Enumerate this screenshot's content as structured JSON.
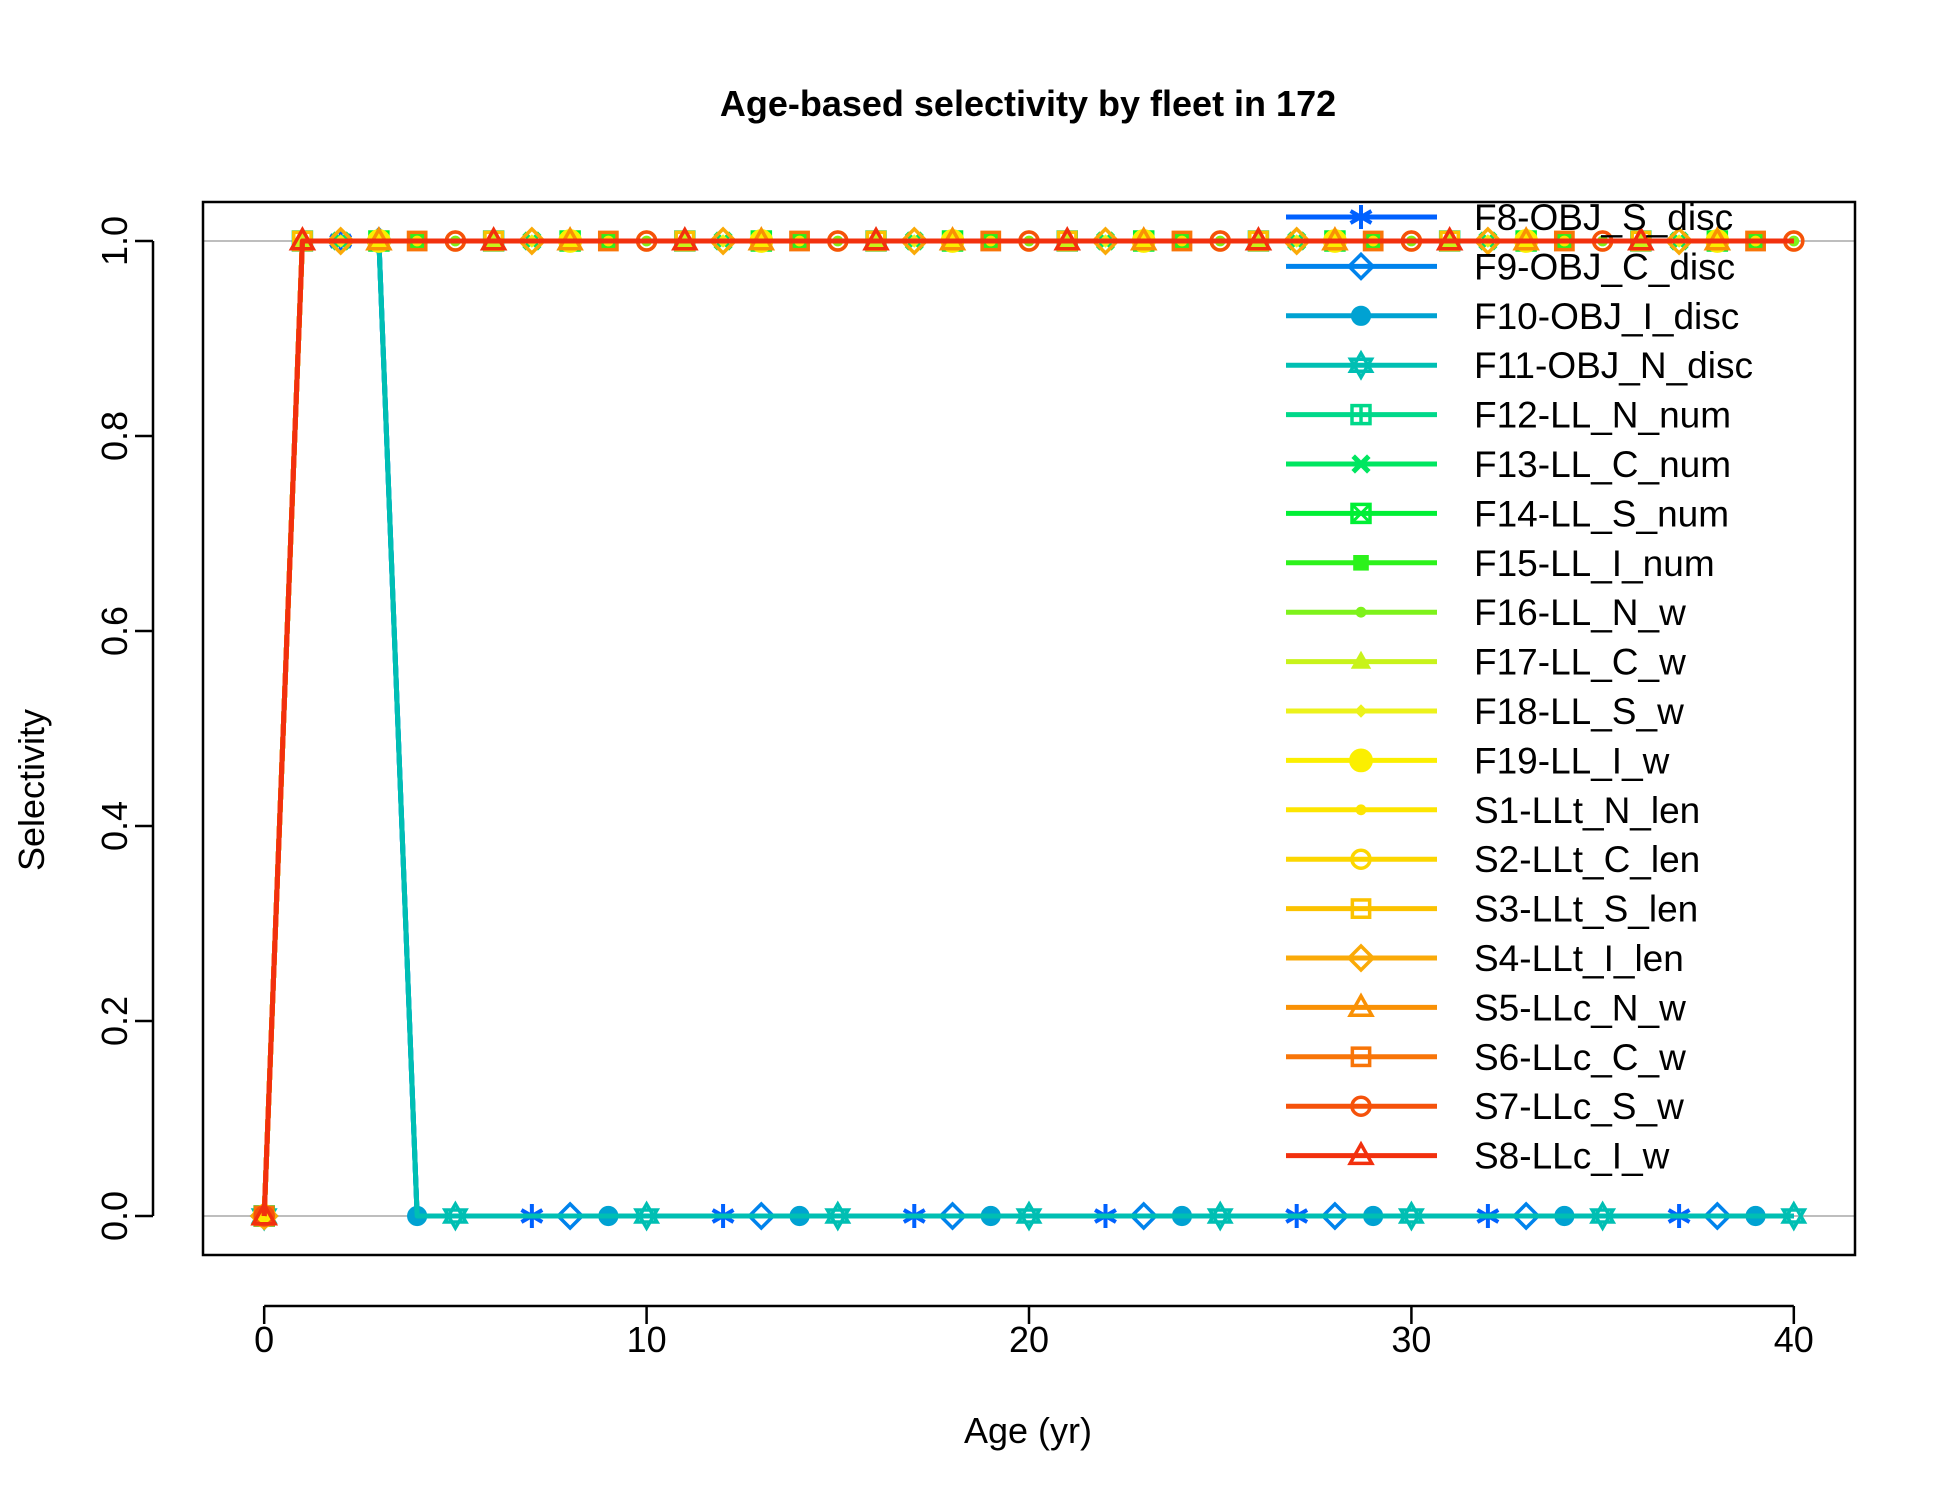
{
  "chart_data": {
    "type": "line",
    "title": "Age-based selectivity by fleet in 172",
    "xlabel": "Age (yr)",
    "ylabel": "Selectivity",
    "xlim": [
      -1.6,
      41.6
    ],
    "ylim": [
      -0.04,
      1.04
    ],
    "x_ticks": [
      "0",
      "10",
      "20",
      "30",
      "40"
    ],
    "y_ticks": [
      "0.0",
      "0.2",
      "0.4",
      "0.6",
      "0.8",
      "1.0"
    ],
    "reference_lines": [
      0,
      1
    ],
    "legend_position": "top-right",
    "groups": [
      {
        "x_switch": 4,
        "series": [
          "F8-OBJ_S_disc",
          "F9-OBJ_C_disc",
          "F10-OBJ_I_disc",
          "F11-OBJ_N_disc"
        ],
        "note": "selectivity 0 at age 0, 1 at ages 1-3, 0 at ages 4-40"
      },
      {
        "x_switch": 1,
        "series": [
          "F12-LL_N_num",
          "F13-LL_C_num",
          "F14-LL_S_num",
          "F15-LL_I_num",
          "F16-LL_N_w",
          "F17-LL_C_w",
          "F18-LL_S_w",
          "F19-LL_I_w",
          "S1-LLt_N_len",
          "S2-LLt_C_len",
          "S3-LLt_S_len",
          "S4-LLt_I_len",
          "S5-LLc_N_w",
          "S6-LLc_C_w",
          "S7-LLc_S_w",
          "S8-LLc_I_w"
        ],
        "note": "selectivity 0 at age 0, 1 at ages 1-40"
      }
    ],
    "series": [
      {
        "name": "F8-OBJ_S_disc",
        "color": "#0061ff",
        "marker": "asterisk",
        "pattern": "juvenile",
        "marker_offset": 2
      },
      {
        "name": "F9-OBJ_C_disc",
        "color": "#0083ec",
        "marker": "diamond-open",
        "pattern": "juvenile",
        "marker_offset": 3
      },
      {
        "name": "F10-OBJ_I_disc",
        "color": "#00a2d2",
        "marker": "circle-filled",
        "pattern": "juvenile",
        "marker_offset": 4
      },
      {
        "name": "F11-OBJ_N_disc",
        "color": "#00bfb3",
        "marker": "hexagram",
        "pattern": "juvenile",
        "marker_offset": 0
      },
      {
        "name": "F12-LL_N_num",
        "color": "#00d88a",
        "marker": "square-plus",
        "pattern": "adult",
        "marker_offset": 1
      },
      {
        "name": "F13-LL_C_num",
        "color": "#00e660",
        "marker": "square-x",
        "pattern": "adult",
        "marker_offset": 2
      },
      {
        "name": "F14-LL_S_num",
        "color": "#00ef35",
        "marker": "square-x-open",
        "pattern": "adult",
        "marker_offset": 3
      },
      {
        "name": "F15-LL_I_num",
        "color": "#2cf21b",
        "marker": "square-filled",
        "pattern": "adult",
        "marker_offset": 4
      },
      {
        "name": "F16-LL_N_w",
        "color": "#7ef21b",
        "marker": "dot",
        "pattern": "adult",
        "marker_offset": 0
      },
      {
        "name": "F17-LL_C_w",
        "color": "#c8f31b",
        "marker": "triangle-filled",
        "pattern": "adult",
        "marker_offset": 1
      },
      {
        "name": "F18-LL_S_w",
        "color": "#ecf21b",
        "marker": "diamond-small",
        "pattern": "adult",
        "marker_offset": 2
      },
      {
        "name": "F19-LL_I_w",
        "color": "#fbef00",
        "marker": "circle-big",
        "pattern": "adult",
        "marker_offset": 3
      },
      {
        "name": "S1-LLt_N_len",
        "color": "#fde500",
        "marker": "dot",
        "pattern": "adult",
        "marker_offset": 4
      },
      {
        "name": "S2-LLt_C_len",
        "color": "#fcd600",
        "marker": "circle-open",
        "pattern": "adult",
        "marker_offset": 0
      },
      {
        "name": "S3-LLt_S_len",
        "color": "#fbc200",
        "marker": "square-open",
        "pattern": "adult",
        "marker_offset": 1
      },
      {
        "name": "S4-LLt_I_len",
        "color": "#faaa08",
        "marker": "diamond-open",
        "pattern": "adult",
        "marker_offset": 2
      },
      {
        "name": "S5-LLc_N_w",
        "color": "#f99105",
        "marker": "triangle-open",
        "pattern": "adult",
        "marker_offset": 3
      },
      {
        "name": "S6-LLc_C_w",
        "color": "#f87508",
        "marker": "square-open",
        "pattern": "adult",
        "marker_offset": 4
      },
      {
        "name": "S7-LLc_S_w",
        "color": "#f5520b",
        "marker": "circle-open",
        "pattern": "adult",
        "marker_offset": 0
      },
      {
        "name": "S8-LLc_I_w",
        "color": "#f2300e",
        "marker": "triangle-open",
        "pattern": "adult",
        "marker_offset": 1
      }
    ]
  }
}
